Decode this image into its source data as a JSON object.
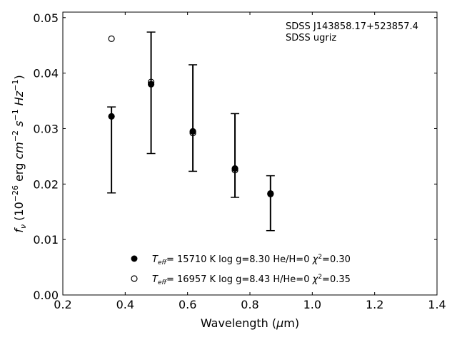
{
  "chart_data": {
    "type": "scatter",
    "title": "",
    "annotation": [
      "SDSS J143858.17+523857.4",
      "SDSS ugriz"
    ],
    "xlabel": "Wavelength (μm)",
    "ylabel": "f_ν (10^-26 erg cm^-2 s^-1 Hz^-1)",
    "xlim": [
      0.2,
      1.4
    ],
    "ylim": [
      0.0,
      0.051
    ],
    "xticks": [
      "0.2",
      "0.4",
      "0.6",
      "0.8",
      "1.0",
      "1.2",
      "1.4"
    ],
    "yticks": [
      "0.00",
      "0.01",
      "0.02",
      "0.03",
      "0.04",
      "0.05"
    ],
    "grid": false,
    "legend_position": "bottom-center",
    "observed": {
      "x": [
        0.356,
        0.483,
        0.617,
        0.752,
        0.866
      ],
      "err_low": [
        0.0184,
        0.0255,
        0.0223,
        0.0176,
        0.0116
      ],
      "err_high": [
        0.0339,
        0.0474,
        0.0415,
        0.0327,
        0.0215
      ]
    },
    "series": [
      {
        "name_parts": {
          "teff": "15710",
          "logg": "8.30",
          "hehe": "He/H=0",
          "chi2": "0.30"
        },
        "marker": "filled-circle",
        "x": [
          0.356,
          0.483,
          0.617,
          0.752,
          0.866
        ],
        "y": [
          0.0322,
          0.038,
          0.0295,
          0.0228,
          0.0183
        ]
      },
      {
        "name_parts": {
          "teff": "16957",
          "logg": "8.43",
          "hehe": "H/He=0",
          "chi2": "0.35"
        },
        "marker": "open-circle",
        "x": [
          0.356,
          0.483,
          0.617,
          0.752,
          0.866
        ],
        "y": [
          0.0462,
          0.0384,
          0.0292,
          0.0225,
          0.0182
        ]
      }
    ]
  }
}
